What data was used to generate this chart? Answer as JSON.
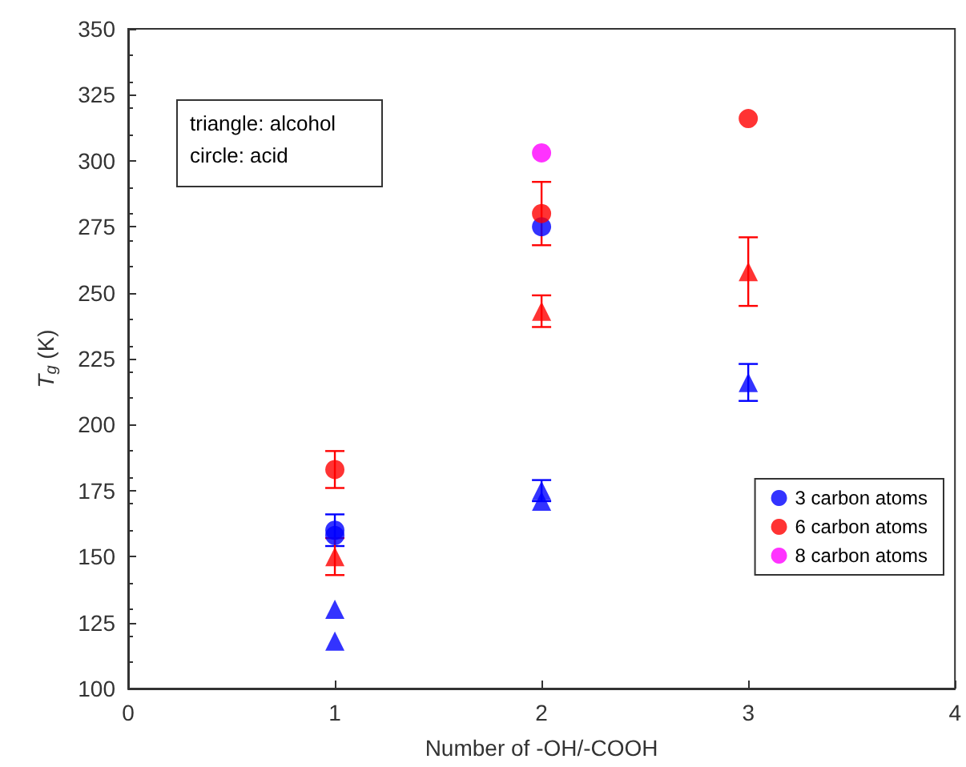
{
  "chart_data": {
    "type": "scatter",
    "xlabel": "Number of -OH/-COOH",
    "ylabel": "T$_{g}$ (K)",
    "xlim": [
      0,
      4
    ],
    "xticks": [
      0,
      1,
      2,
      3,
      4
    ],
    "ylim": [
      100,
      350
    ],
    "yticks": [
      100,
      125,
      150,
      175,
      200,
      225,
      250,
      275,
      300,
      325,
      350
    ],
    "grid": false,
    "legend": "bottom right",
    "annotations": [
      "triangle: alcohol",
      "circle: acid"
    ],
    "series": [
      {
        "name": "3 carbon atoms",
        "color": "#0000ff",
        "marker": "circle",
        "x": [
          1,
          1,
          2
        ],
        "values": [
          160,
          158,
          275
        ],
        "errors": [
          6,
          null,
          null
        ]
      },
      {
        "color": "#0000ff",
        "marker": "triangle",
        "x": [
          1,
          1,
          2,
          2,
          3
        ],
        "values": [
          130,
          118,
          175,
          171,
          216
        ],
        "errors": [
          null,
          null,
          4,
          null,
          7
        ]
      },
      {
        "name": "6 carbon atoms",
        "color": "#ff0000",
        "marker": "circle",
        "x": [
          1,
          2,
          3
        ],
        "values": [
          183,
          280,
          316
        ],
        "errors": [
          7,
          12,
          null
        ]
      },
      {
        "color": "#ff0000",
        "marker": "triangle",
        "x": [
          1,
          2,
          3
        ],
        "values": [
          150,
          243,
          258
        ],
        "errors": [
          7,
          6,
          13
        ]
      },
      {
        "name": "8 carbon atoms",
        "color": "#ff00ff",
        "marker": "circle",
        "x": [
          2
        ],
        "values": [
          303
        ]
      }
    ]
  }
}
